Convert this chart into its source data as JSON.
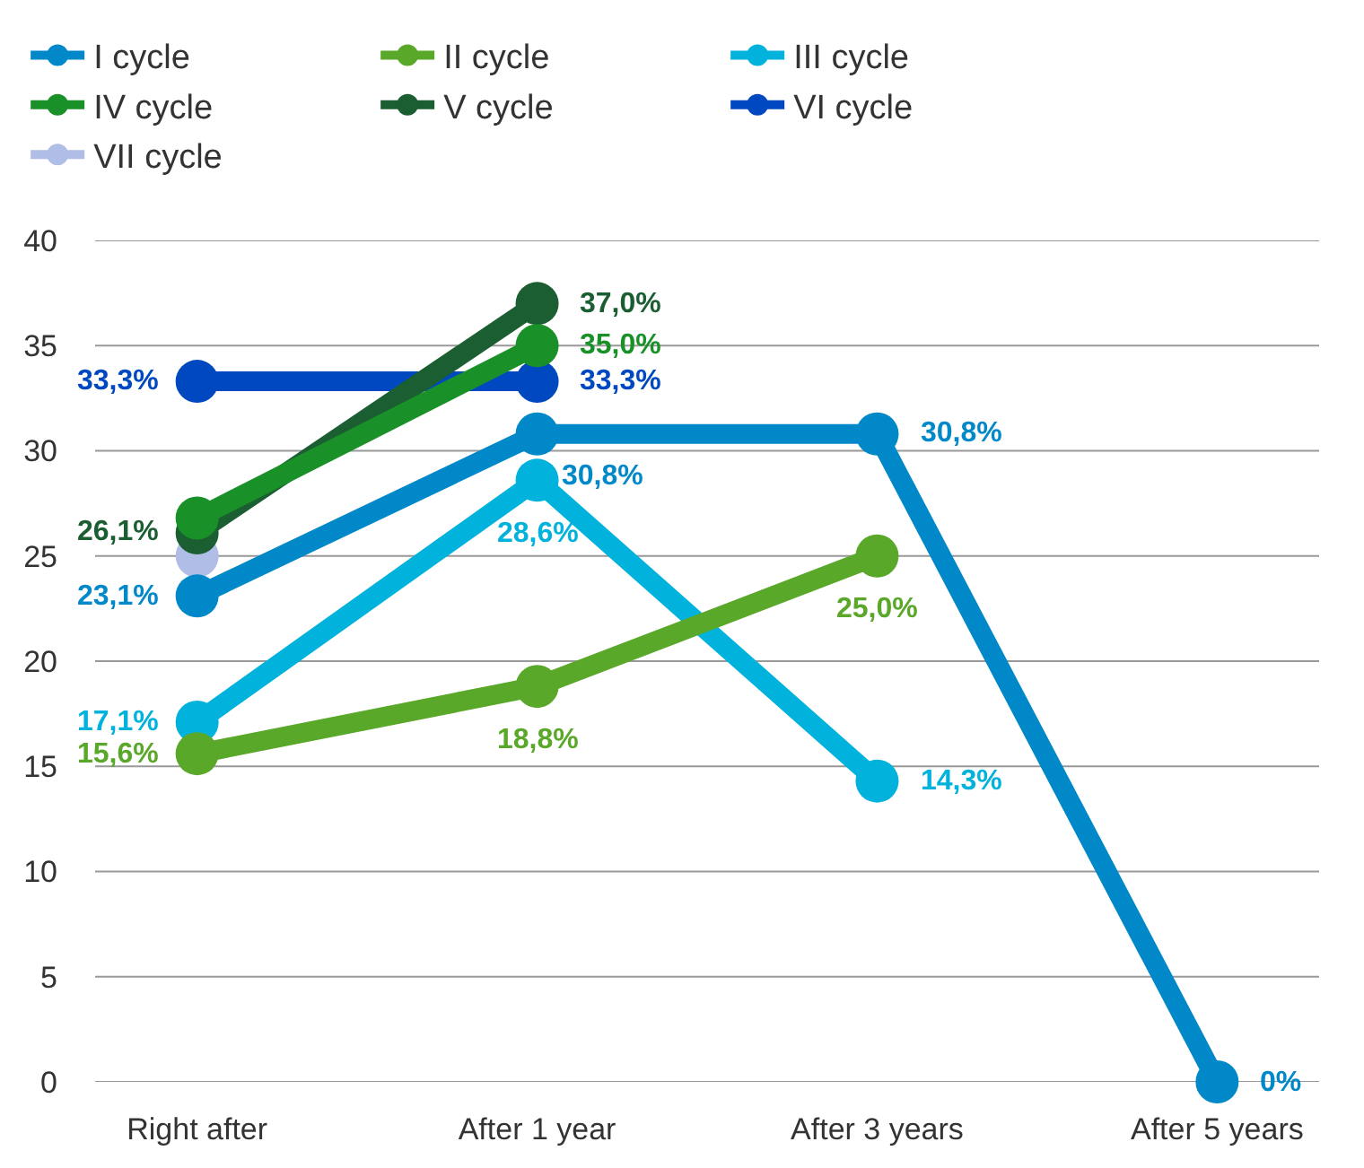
{
  "chart_data": {
    "type": "line",
    "categories": [
      "Right after",
      "After 1 year",
      "After 3 years",
      "After 5 years"
    ],
    "series": [
      {
        "name": "I cycle",
        "color": "#0088c8",
        "values": [
          23.1,
          30.8,
          30.8,
          0
        ],
        "value_labels": [
          "23,1%",
          "30,8%",
          "30,8%",
          "0%"
        ]
      },
      {
        "name": "II cycle",
        "color": "#5aa829",
        "values": [
          15.6,
          18.8,
          25.0,
          null
        ],
        "value_labels": [
          "15,6%",
          "18,8%",
          "25,0%",
          null
        ]
      },
      {
        "name": "III cycle",
        "color": "#00b2dc",
        "values": [
          17.1,
          28.6,
          14.3,
          null
        ],
        "value_labels": [
          "17,1%",
          "28,6%",
          "14,3%",
          null
        ]
      },
      {
        "name": "IV cycle",
        "color": "#1a9128",
        "values": [
          26.8,
          35.0,
          null,
          null
        ],
        "value_labels": [
          null,
          "35,0%",
          null,
          null
        ]
      },
      {
        "name": "V cycle",
        "color": "#1a5e32",
        "values": [
          26.1,
          37.0,
          null,
          null
        ],
        "value_labels": [
          "26,1%",
          "37,0%",
          null,
          null
        ]
      },
      {
        "name": "VI cycle",
        "color": "#0048c0",
        "values": [
          33.3,
          33.3,
          null,
          null
        ],
        "value_labels": [
          "33,3%",
          "33,3%",
          null,
          null
        ]
      },
      {
        "name": "VII cycle",
        "color": "#b0bde6",
        "values": [
          25.0,
          null,
          null,
          null
        ],
        "value_labels": [
          null,
          null,
          null,
          null
        ]
      }
    ],
    "ylim": [
      0,
      40
    ],
    "yticks": [
      0,
      5,
      10,
      15,
      20,
      25,
      30,
      35,
      40
    ],
    "grid": "y",
    "legend": "top",
    "marker": "circle",
    "line_style": "solid"
  }
}
